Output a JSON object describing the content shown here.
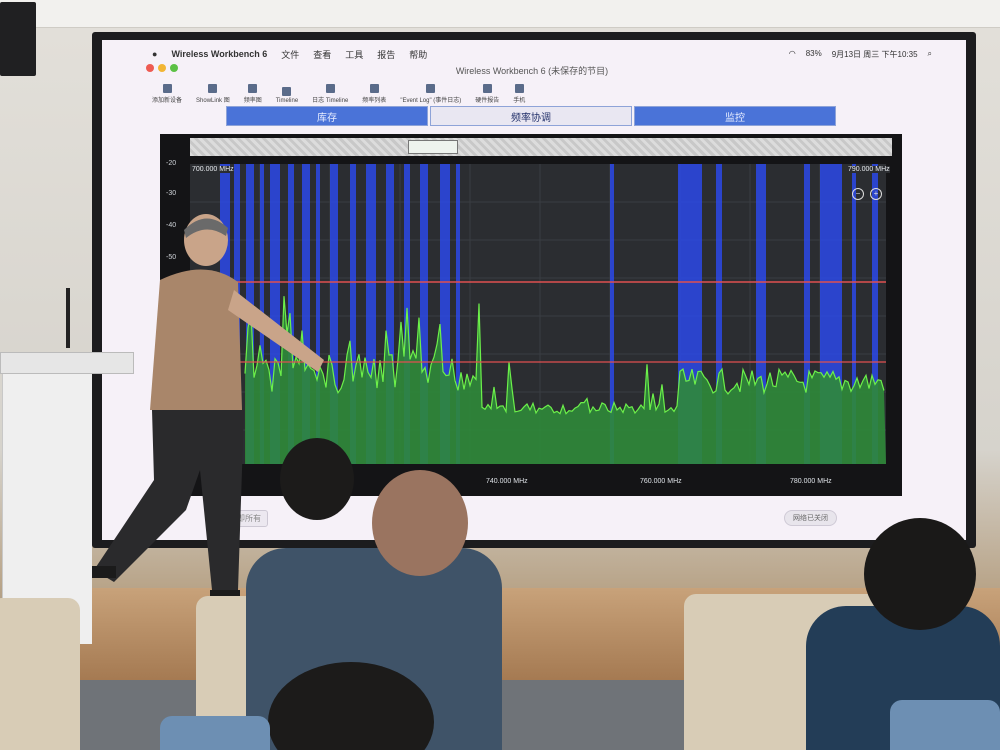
{
  "app": {
    "name": "Wireless Workbench 6",
    "menus": [
      "文件",
      "查看",
      "工具",
      "报告",
      "帮助"
    ],
    "window_title": "Wireless Workbench 6 (未保存的节目)",
    "status": {
      "battery": "83%",
      "datetime": "9月13日 周三 下午10:35"
    }
  },
  "toolbar": {
    "items": [
      "添加新设备",
      "ShowLink 图",
      "频率图",
      "Timeline",
      "日志 Timeline",
      "频率列表",
      "\"Event Log\" (事件日志)",
      "硬件报告",
      "手机"
    ]
  },
  "tabs": [
    {
      "label": "库存",
      "active": true
    },
    {
      "label": "频率协调",
      "active": false
    },
    {
      "label": "监控",
      "active": true
    }
  ],
  "plot": {
    "y_ticks": [
      "-20",
      "-30",
      "-40",
      "-50"
    ],
    "x_ticks": [
      "740.000 MHz",
      "760.000 MHz",
      "780.000 MHz"
    ],
    "range_start": "700.000 MHz",
    "range_end": "790.000 MHz",
    "colors": {
      "trace": "#6cf04a",
      "fill": "#2f8a3a",
      "threshold": "#e05050",
      "channel": "#2b49e8"
    }
  },
  "footer": {
    "left_button": "立即所有",
    "status": "网络已关闭"
  }
}
